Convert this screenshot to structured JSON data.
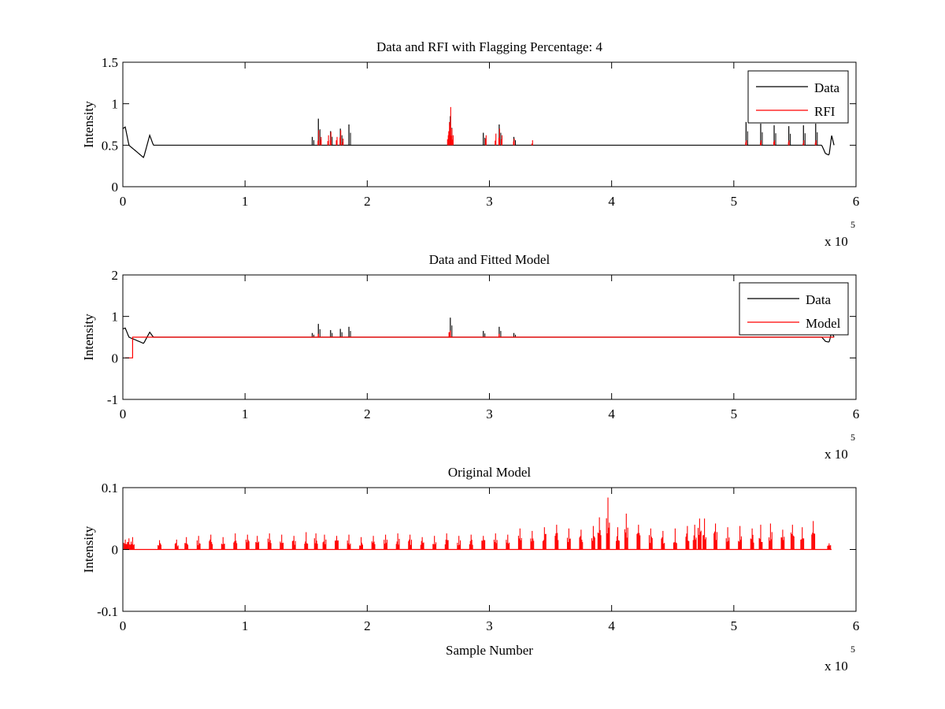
{
  "chart_data": [
    {
      "type": "line",
      "title": "Data and RFI with Flagging Percentage: 4",
      "xlabel": "",
      "ylabel": "Intensity",
      "xlim": [
        0,
        6
      ],
      "ylim": [
        0,
        1.5
      ],
      "x_multiplier": "x 10",
      "x_multiplier_exp": "5",
      "x_ticks": [
        "0",
        "1",
        "2",
        "3",
        "4",
        "5",
        "6"
      ],
      "y_ticks": [
        "0",
        "0.5",
        "1",
        "1.5"
      ],
      "legend_position": "top-right",
      "series": [
        {
          "name": "Data",
          "color": "#000000",
          "baseline": 0.5,
          "dips": [
            [
              0.0,
              0.7
            ],
            [
              0.02,
              0.72
            ],
            [
              0.05,
              0.5
            ],
            [
              0.17,
              0.35
            ],
            [
              0.22,
              0.62
            ],
            [
              0.25,
              0.5
            ],
            [
              5.72,
              0.5
            ],
            [
              5.75,
              0.4
            ],
            [
              5.78,
              0.38
            ],
            [
              5.8,
              0.62
            ],
            [
              5.82,
              0.5
            ]
          ],
          "peaks": [
            [
              1.55,
              0.6
            ],
            [
              1.6,
              0.82
            ],
            [
              1.7,
              0.67
            ],
            [
              1.78,
              0.7
            ],
            [
              1.85,
              0.75
            ],
            [
              2.68,
              0.85
            ],
            [
              2.95,
              0.65
            ],
            [
              3.08,
              0.75
            ],
            [
              3.2,
              0.6
            ],
            [
              5.1,
              0.78
            ],
            [
              5.22,
              0.76
            ],
            [
              5.33,
              0.74
            ],
            [
              5.45,
              0.73
            ],
            [
              5.57,
              0.74
            ],
            [
              5.67,
              0.76
            ]
          ],
          "ripple_spacing": 0.1,
          "ripple_height": 0.03
        },
        {
          "name": "RFI",
          "color": "#ff0000",
          "spikes": [
            [
              1.6,
              0.68
            ],
            [
              1.62,
              0.6
            ],
            [
              1.68,
              0.62
            ],
            [
              1.7,
              0.66
            ],
            [
              1.75,
              0.6
            ],
            [
              1.78,
              0.68
            ],
            [
              1.8,
              0.58
            ],
            [
              2.66,
              0.62
            ],
            [
              2.67,
              0.78
            ],
            [
              2.68,
              0.96
            ],
            [
              2.69,
              0.7
            ],
            [
              2.7,
              0.62
            ],
            [
              2.97,
              0.62
            ],
            [
              3.05,
              0.64
            ],
            [
              3.08,
              0.7
            ],
            [
              3.1,
              0.62
            ],
            [
              3.2,
              0.58
            ],
            [
              3.35,
              0.56
            ],
            [
              5.1,
              0.56
            ],
            [
              5.22,
              0.56
            ],
            [
              5.33,
              0.56
            ],
            [
              5.45,
              0.56
            ],
            [
              5.57,
              0.56
            ],
            [
              5.67,
              0.56
            ]
          ]
        }
      ]
    },
    {
      "type": "line",
      "title": "Data and Fitted Model",
      "xlabel": "",
      "ylabel": "Intensity",
      "xlim": [
        0,
        6
      ],
      "ylim": [
        -1,
        2
      ],
      "x_multiplier": "x 10",
      "x_multiplier_exp": "5",
      "x_ticks": [
        "0",
        "1",
        "2",
        "3",
        "4",
        "5",
        "6"
      ],
      "y_ticks": [
        "-1",
        "0",
        "1",
        "2"
      ],
      "legend_position": "top-right",
      "series": [
        {
          "name": "Data",
          "color": "#000000",
          "baseline": 0.5,
          "dips": [
            [
              0.0,
              0.7
            ],
            [
              0.02,
              0.72
            ],
            [
              0.05,
              0.5
            ],
            [
              0.17,
              0.35
            ],
            [
              0.22,
              0.62
            ],
            [
              0.25,
              0.5
            ],
            [
              5.72,
              0.5
            ],
            [
              5.75,
              0.4
            ],
            [
              5.78,
              0.38
            ],
            [
              5.8,
              0.62
            ],
            [
              5.82,
              0.5
            ]
          ],
          "peaks": [
            [
              1.55,
              0.6
            ],
            [
              1.6,
              0.82
            ],
            [
              1.7,
              0.67
            ],
            [
              1.78,
              0.7
            ],
            [
              1.85,
              0.75
            ],
            [
              2.68,
              0.97
            ],
            [
              2.95,
              0.65
            ],
            [
              3.08,
              0.75
            ],
            [
              3.2,
              0.6
            ]
          ],
          "ripple_spacing": 0.1,
          "ripple_height": 0.03
        },
        {
          "name": "Model",
          "color": "#ff0000",
          "step": [
            [
              0.02,
              0.0
            ],
            [
              0.08,
              0.0
            ],
            [
              0.08,
              0.5
            ],
            [
              5.82,
              0.5
            ]
          ],
          "bumps": [
            [
              1.6,
              0.58
            ],
            [
              2.67,
              0.62
            ],
            [
              2.68,
              0.66
            ],
            [
              3.08,
              0.58
            ]
          ]
        }
      ]
    },
    {
      "type": "line",
      "title": "Original Model",
      "xlabel": "Sample Number",
      "ylabel": "Intensity",
      "xlim": [
        0,
        6
      ],
      "ylim": [
        -0.1,
        0.1
      ],
      "x_multiplier": "x 10",
      "x_multiplier_exp": "5",
      "x_ticks": [
        "0",
        "1",
        "2",
        "3",
        "4",
        "5",
        "6"
      ],
      "y_ticks": [
        "-0.1",
        "0",
        "0.1"
      ],
      "series": [
        {
          "color": "#ff0000",
          "baseline": 0.0,
          "spikes": [
            [
              0.02,
              0.016
            ],
            [
              0.05,
              0.018
            ],
            [
              0.08,
              0.02
            ],
            [
              0.3,
              0.015
            ],
            [
              0.44,
              0.016
            ],
            [
              0.52,
              0.02
            ],
            [
              0.62,
              0.022
            ],
            [
              0.72,
              0.024
            ],
            [
              0.82,
              0.02
            ],
            [
              0.92,
              0.026
            ],
            [
              1.02,
              0.024
            ],
            [
              1.1,
              0.022
            ],
            [
              1.2,
              0.026
            ],
            [
              1.3,
              0.024
            ],
            [
              1.4,
              0.022
            ],
            [
              1.5,
              0.028
            ],
            [
              1.58,
              0.026
            ],
            [
              1.65,
              0.024
            ],
            [
              1.75,
              0.022
            ],
            [
              1.85,
              0.024
            ],
            [
              1.95,
              0.02
            ],
            [
              2.05,
              0.022
            ],
            [
              2.15,
              0.024
            ],
            [
              2.25,
              0.026
            ],
            [
              2.35,
              0.024
            ],
            [
              2.45,
              0.02
            ],
            [
              2.55,
              0.022
            ],
            [
              2.65,
              0.026
            ],
            [
              2.75,
              0.022
            ],
            [
              2.85,
              0.024
            ],
            [
              2.95,
              0.022
            ],
            [
              3.05,
              0.026
            ],
            [
              3.15,
              0.024
            ],
            [
              3.25,
              0.034
            ],
            [
              3.35,
              0.03
            ],
            [
              3.45,
              0.036
            ],
            [
              3.55,
              0.04
            ],
            [
              3.65,
              0.034
            ],
            [
              3.75,
              0.032
            ],
            [
              3.85,
              0.038
            ],
            [
              3.9,
              0.052
            ],
            [
              3.97,
              0.084
            ],
            [
              4.05,
              0.036
            ],
            [
              4.12,
              0.058
            ],
            [
              4.22,
              0.04
            ],
            [
              4.32,
              0.034
            ],
            [
              4.42,
              0.03
            ],
            [
              4.52,
              0.034
            ],
            [
              4.62,
              0.038
            ],
            [
              4.68,
              0.04
            ],
            [
              4.72,
              0.05
            ],
            [
              4.76,
              0.05
            ],
            [
              4.85,
              0.042
            ],
            [
              4.95,
              0.036
            ],
            [
              5.05,
              0.038
            ],
            [
              5.15,
              0.034
            ],
            [
              5.22,
              0.04
            ],
            [
              5.3,
              0.042
            ],
            [
              5.4,
              0.032
            ],
            [
              5.48,
              0.04
            ],
            [
              5.56,
              0.036
            ],
            [
              5.65,
              0.046
            ],
            [
              5.78,
              0.01
            ]
          ]
        }
      ]
    }
  ]
}
